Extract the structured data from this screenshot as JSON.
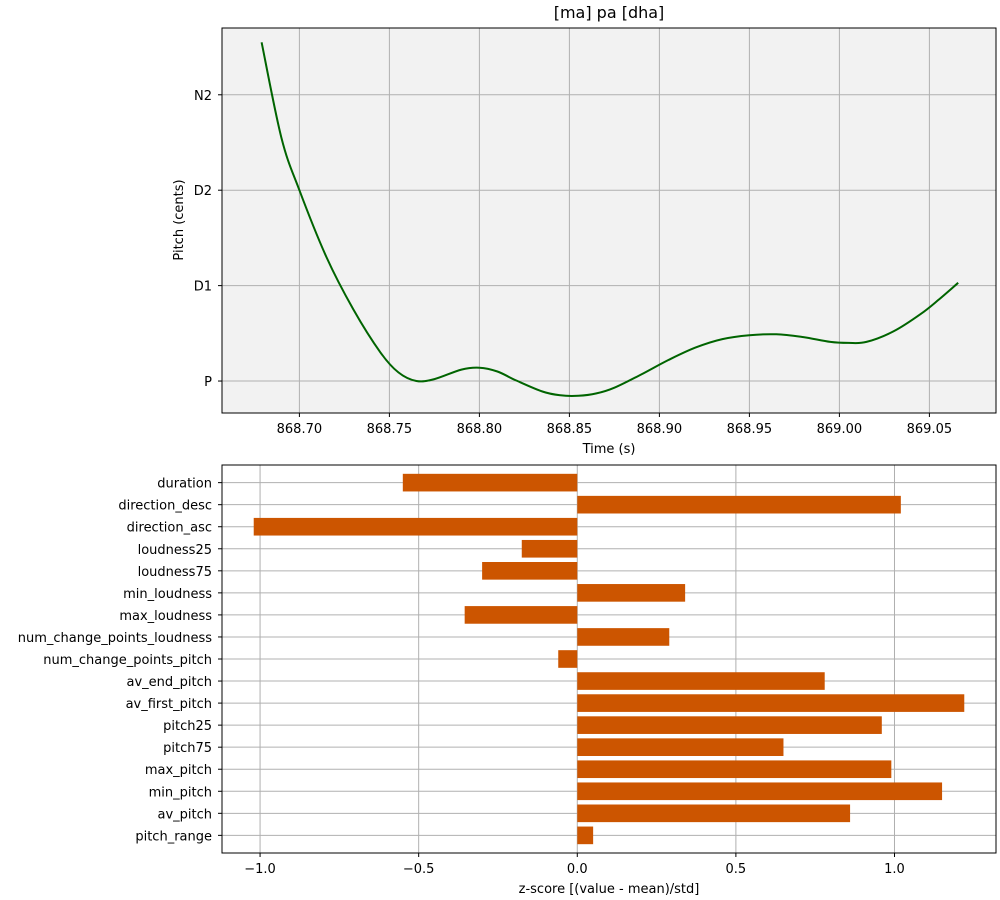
{
  "colors": {
    "line": "#006400",
    "bar": "#cc5500",
    "axes_bg_top": "#f2f2f2",
    "axes_bg_bottom": "#ffffff",
    "grid": "#b0b0b0"
  },
  "chart_data": [
    {
      "type": "line",
      "title": "[ma] pa [dha]",
      "xlabel": "Time (s)",
      "ylabel": "Pitch (cents)",
      "grid": true,
      "xlim": [
        868.657,
        869.087
      ],
      "ylim": [
        -0.335,
        3.7
      ],
      "xticks": [
        868.7,
        868.75,
        868.8,
        868.85,
        868.9,
        868.95,
        869.0,
        869.05
      ],
      "xtick_labels": [
        "868.70",
        "868.75",
        "868.80",
        "868.85",
        "868.90",
        "868.95",
        "869.00",
        "869.05"
      ],
      "yticks": [
        0,
        1,
        2,
        3
      ],
      "ytick_labels": [
        "P",
        "D1",
        "D2",
        "N2"
      ],
      "series": [
        {
          "x": [
            868.679,
            868.69,
            868.7,
            868.715,
            868.73,
            868.745,
            868.755,
            868.765,
            868.775,
            868.79,
            868.8,
            868.81,
            868.82,
            868.835,
            868.845,
            868.855,
            868.865,
            868.875,
            868.89,
            868.905,
            868.92,
            868.935,
            868.95,
            868.965,
            868.98,
            868.995,
            869.005,
            869.015,
            869.03,
            869.045,
            869.055,
            869.066
          ],
          "y": [
            3.55,
            2.55,
            2.0,
            1.3,
            0.75,
            0.3,
            0.09,
            0.0,
            0.02,
            0.12,
            0.14,
            0.1,
            0.01,
            -0.11,
            -0.15,
            -0.155,
            -0.13,
            -0.07,
            0.07,
            0.22,
            0.35,
            0.44,
            0.48,
            0.49,
            0.46,
            0.41,
            0.4,
            0.41,
            0.52,
            0.7,
            0.85,
            1.03
          ]
        }
      ]
    },
    {
      "type": "bar",
      "orientation": "horizontal",
      "xlabel": "z-score [(value - mean)/std]",
      "grid": true,
      "xlim": [
        -1.12,
        1.32
      ],
      "xticks": [
        -1.0,
        -0.5,
        0.0,
        0.5,
        1.0
      ],
      "xtick_labels": [
        "−1.0",
        "−0.5",
        "0.0",
        "0.5",
        "1.0"
      ],
      "categories": [
        "pitch_range",
        "av_pitch",
        "min_pitch",
        "max_pitch",
        "pitch75",
        "pitch25",
        "av_first_pitch",
        "av_end_pitch",
        "num_change_points_pitch",
        "num_change_points_loudness",
        "max_loudness",
        "min_loudness",
        "loudness75",
        "loudness25",
        "direction_asc",
        "direction_desc",
        "duration"
      ],
      "values": [
        0.05,
        0.86,
        1.15,
        0.99,
        0.65,
        0.96,
        1.22,
        0.78,
        -0.06,
        0.29,
        -0.355,
        0.34,
        -0.3,
        -0.175,
        -1.02,
        1.02,
        -0.55
      ]
    }
  ]
}
